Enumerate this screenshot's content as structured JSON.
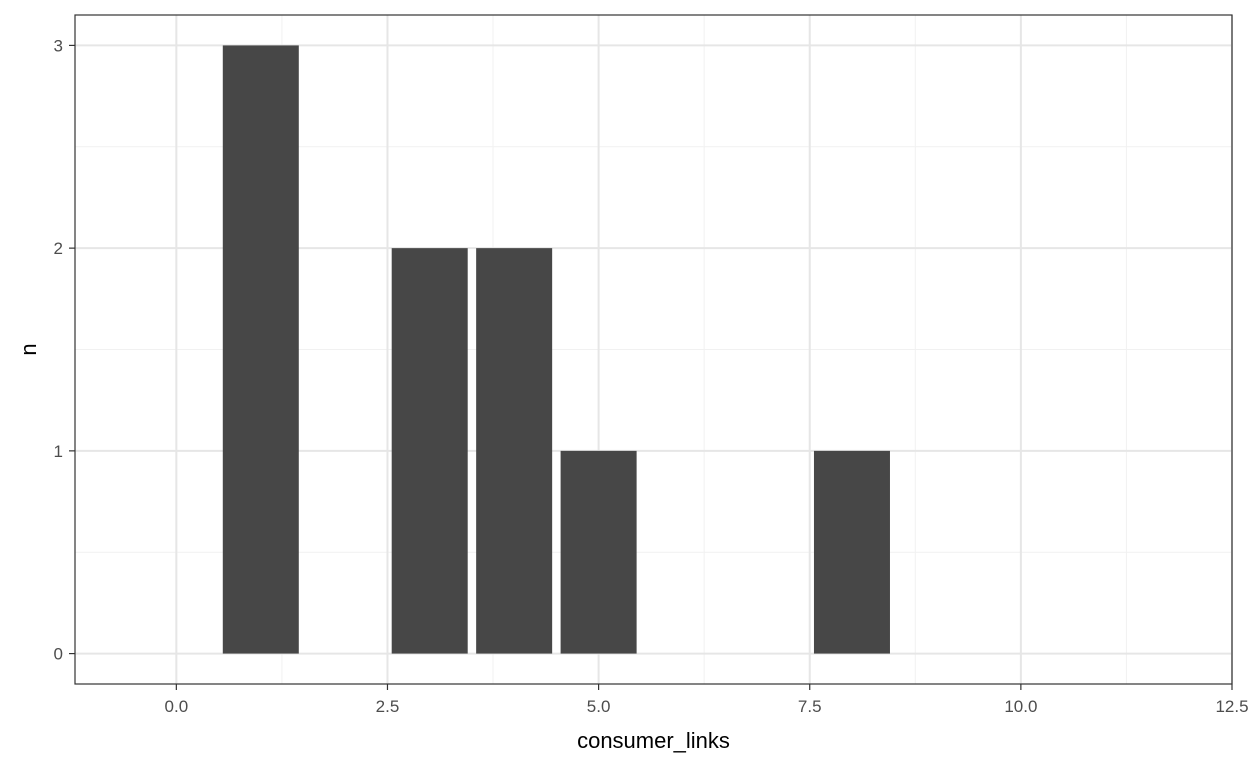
{
  "chart_data": {
    "type": "bar",
    "xlabel": "consumer_links",
    "ylabel": "n",
    "xlim": [
      -1.2,
      12.5
    ],
    "ylim": [
      -0.15,
      3.15
    ],
    "x_ticks": [
      0,
      2.5,
      5,
      7.5,
      10,
      12.5
    ],
    "x_tick_labels": [
      "0.0",
      "2.5",
      "5.0",
      "7.5",
      "10.0",
      "12.5"
    ],
    "y_ticks": [
      0,
      1,
      2,
      3
    ],
    "y_tick_labels": [
      "0",
      "1",
      "2",
      "3"
    ],
    "x": [
      1,
      3,
      4,
      5,
      8
    ],
    "values": [
      3,
      2,
      2,
      1,
      1
    ],
    "bar_width": 0.9,
    "grid": true,
    "colors": {
      "bar": "#474747",
      "grid_major": "#e6e6e6",
      "grid_minor": "#f1f1f1",
      "panel_border": "#333333"
    }
  }
}
